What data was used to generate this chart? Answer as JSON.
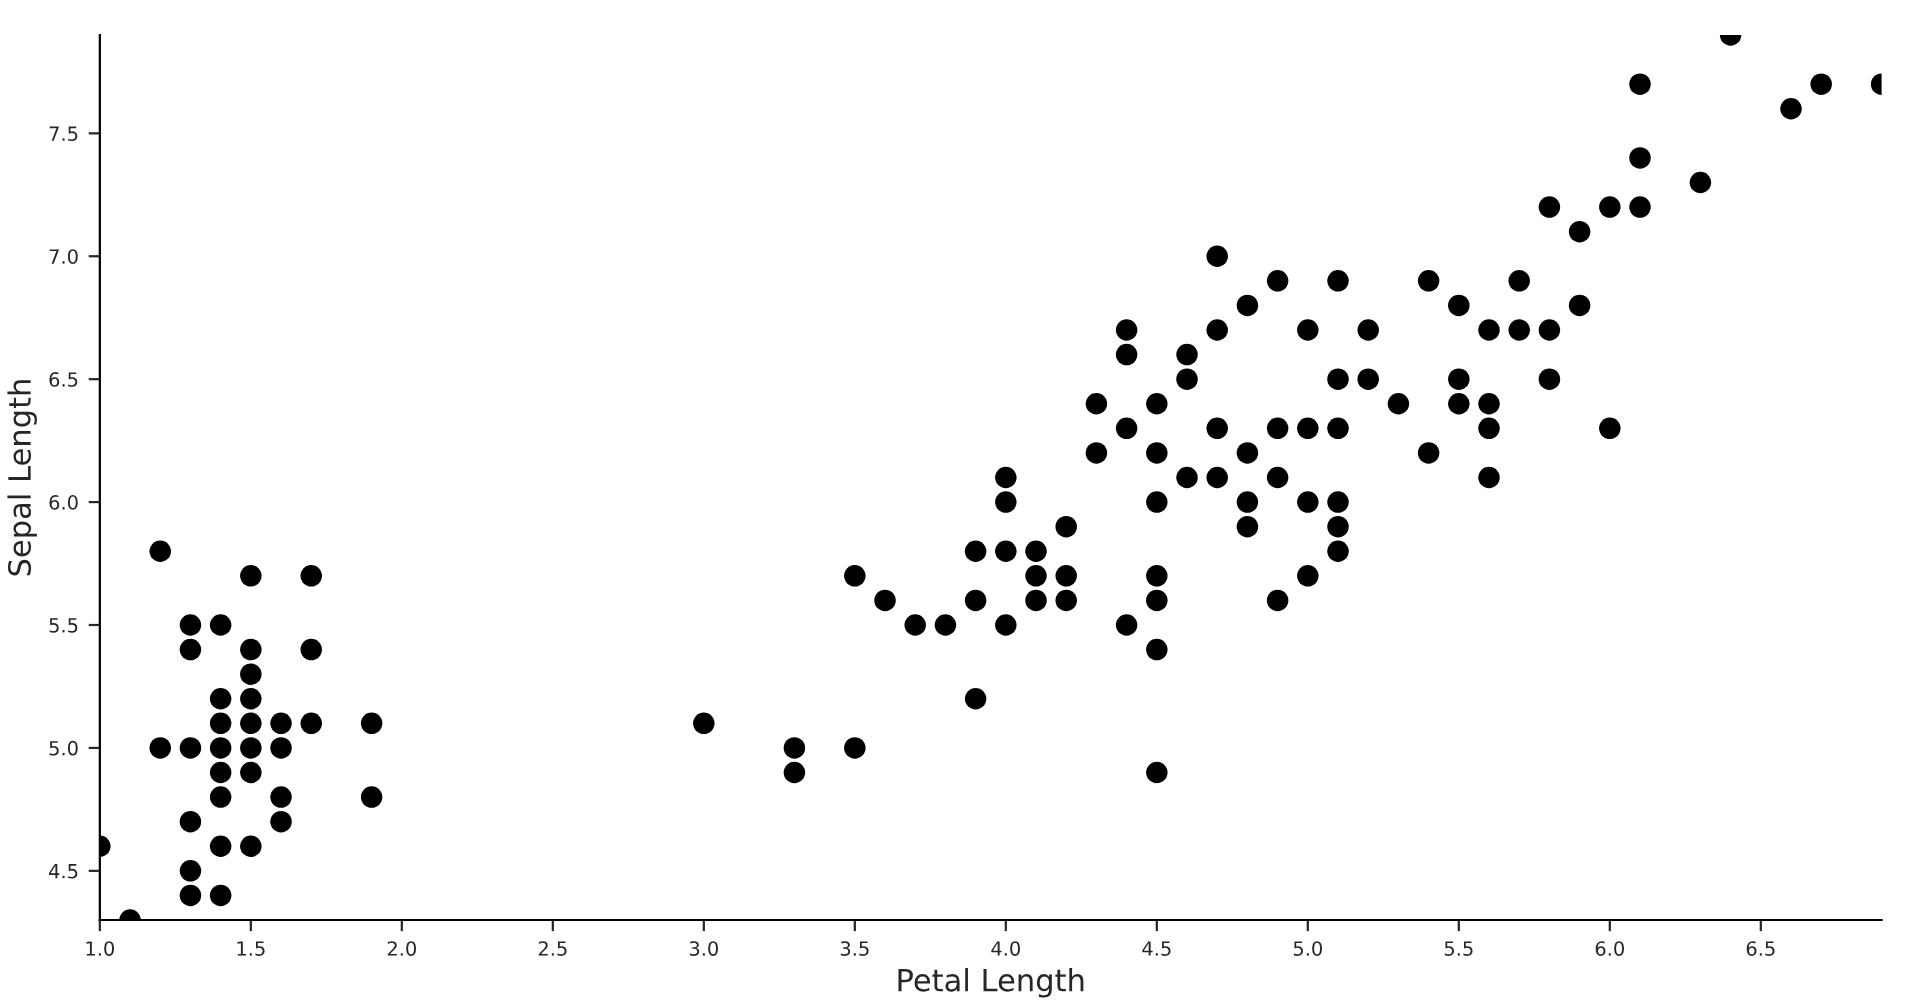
{
  "chart_data": {
    "type": "scatter",
    "xlabel": "Petal Length",
    "ylabel": "Sepal Length",
    "marker": "circle",
    "grid": false,
    "legend": false,
    "xlim": [
      1.0,
      6.9
    ],
    "ylim": [
      4.3,
      7.9
    ],
    "xticks": [
      {
        "value": 1,
        "label": "1.0"
      },
      1.5,
      {
        "value": 2,
        "label": "2.0"
      },
      2.5,
      {
        "value": 3,
        "label": "3.0"
      },
      3.5,
      {
        "value": 4,
        "label": "4.0"
      },
      4.5,
      {
        "value": 5,
        "label": "5.0"
      },
      5.5,
      {
        "value": 6,
        "label": "6.0"
      },
      6.5
    ],
    "yticks": [
      4.5,
      {
        "value": 5,
        "label": "5.0"
      },
      5.5,
      {
        "value": 6,
        "label": "6.0"
      },
      6.5,
      {
        "value": 7,
        "label": "7.0"
      },
      7.5
    ],
    "series": [
      {
        "color": "#000000",
        "x": [
          1.0,
          1.1,
          1.2,
          1.2,
          1.3,
          1.3,
          1.3,
          1.3,
          1.3,
          1.3,
          1.4,
          1.4,
          1.4,
          1.4,
          1.4,
          1.4,
          1.4,
          1.4,
          1.5,
          1.5,
          1.5,
          1.5,
          1.5,
          1.5,
          1.5,
          1.5,
          1.6,
          1.6,
          1.6,
          1.6,
          1.7,
          1.7,
          1.7,
          1.9,
          1.9,
          3.0,
          3.3,
          3.3,
          3.5,
          3.5,
          3.6,
          3.7,
          3.8,
          3.9,
          3.9,
          3.9,
          4.0,
          4.0,
          4.0,
          4.0,
          4.1,
          4.1,
          4.1,
          4.2,
          4.2,
          4.2,
          4.3,
          4.3,
          4.4,
          4.4,
          4.4,
          4.4,
          4.5,
          4.5,
          4.5,
          4.5,
          4.5,
          4.5,
          4.5,
          4.6,
          4.6,
          4.6,
          4.7,
          4.7,
          4.7,
          4.7,
          4.8,
          4.8,
          4.8,
          4.8,
          4.9,
          4.9,
          4.9,
          4.9,
          5.0,
          5.0,
          5.0,
          5.0,
          5.1,
          5.1,
          5.1,
          5.1,
          5.1,
          5.1,
          5.2,
          5.2,
          5.3,
          5.4,
          5.4,
          5.5,
          5.5,
          5.5,
          5.6,
          5.6,
          5.6,
          5.6,
          5.7,
          5.7,
          5.8,
          5.8,
          5.8,
          5.9,
          5.9,
          6.0,
          6.0,
          6.1,
          6.1,
          6.1,
          6.3,
          6.4,
          6.6,
          6.7,
          6.9
        ],
        "values": [
          4.6,
          4.3,
          5.8,
          5.0,
          4.7,
          5.4,
          5.5,
          4.4,
          5.0,
          4.5,
          5.1,
          4.9,
          5.0,
          4.6,
          4.4,
          4.8,
          5.2,
          5.5,
          4.6,
          5.0,
          4.9,
          5.4,
          5.7,
          5.1,
          5.2,
          5.3,
          4.8,
          5.0,
          4.7,
          5.1,
          5.4,
          5.7,
          5.1,
          4.8,
          5.1,
          5.1,
          4.9,
          5.0,
          5.0,
          5.7,
          5.6,
          5.5,
          5.5,
          5.2,
          5.6,
          5.8,
          5.5,
          6.0,
          6.1,
          5.8,
          5.8,
          5.6,
          5.7,
          5.9,
          5.6,
          5.7,
          6.4,
          6.2,
          6.7,
          6.6,
          6.3,
          5.5,
          6.4,
          5.7,
          5.6,
          6.2,
          5.4,
          6.0,
          4.9,
          6.5,
          6.6,
          6.1,
          7.0,
          6.3,
          6.1,
          6.7,
          5.9,
          6.8,
          6.2,
          6.0,
          6.9,
          6.3,
          5.6,
          6.1,
          6.7,
          5.7,
          6.0,
          6.3,
          6.0,
          5.8,
          6.5,
          6.3,
          6.9,
          5.9,
          6.7,
          6.5,
          6.4,
          6.9,
          6.2,
          6.8,
          6.5,
          6.4,
          6.3,
          6.4,
          6.1,
          6.7,
          6.9,
          6.7,
          6.5,
          6.7,
          7.2,
          7.1,
          6.8,
          6.3,
          7.2,
          7.2,
          7.4,
          7.7,
          7.3,
          7.9,
          7.6,
          7.7,
          7.7
        ]
      }
    ]
  }
}
